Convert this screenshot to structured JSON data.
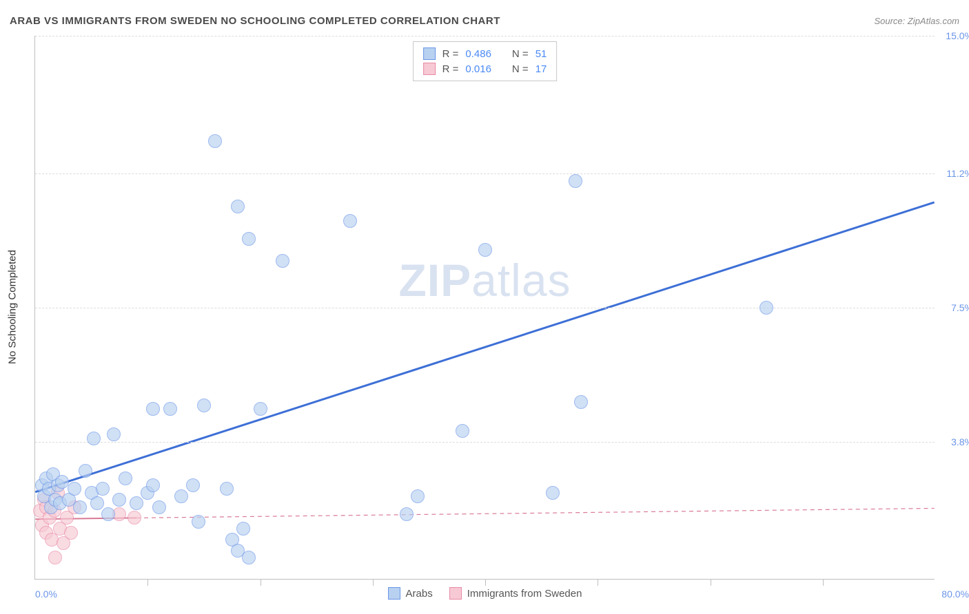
{
  "header": {
    "title": "ARAB VS IMMIGRANTS FROM SWEDEN NO SCHOOLING COMPLETED CORRELATION CHART",
    "source": "Source: ZipAtlas.com"
  },
  "ylabel": "No Schooling Completed",
  "watermark_zip": "ZIP",
  "watermark_atlas": "atlas",
  "chart": {
    "type": "scatter",
    "xlim": [
      0,
      80
    ],
    "ylim": [
      0,
      15
    ],
    "yticks": [
      {
        "value": 3.8,
        "label": "3.8%"
      },
      {
        "value": 7.5,
        "label": "7.5%"
      },
      {
        "value": 11.2,
        "label": "11.2%"
      },
      {
        "value": 15.0,
        "label": "15.0%"
      }
    ],
    "xticks_major": [
      10,
      20,
      30,
      40,
      50,
      60,
      70
    ],
    "x_start_label": "0.0%",
    "x_end_label": "80.0%",
    "background_color": "#ffffff",
    "grid_color": "#dcdcdc",
    "axis_color": "#bfbfbf",
    "point_radius": 10,
    "series": {
      "arabs": {
        "label": "Arabs",
        "fill": "#b8d1f0",
        "stroke": "#6a95e8",
        "fill_opacity": 0.65,
        "trend": {
          "x1": 0,
          "y1": 2.4,
          "x2": 80,
          "y2": 10.4,
          "color": "#3d6fd6",
          "width": 3,
          "dash": "none"
        },
        "R_label": "R =",
        "R": "0.486",
        "N_label": "N =",
        "N": "51",
        "points": [
          [
            0.6,
            2.6
          ],
          [
            0.8,
            2.3
          ],
          [
            1.0,
            2.8
          ],
          [
            1.2,
            2.5
          ],
          [
            1.4,
            2.0
          ],
          [
            1.6,
            2.9
          ],
          [
            1.8,
            2.2
          ],
          [
            2.0,
            2.6
          ],
          [
            2.2,
            2.1
          ],
          [
            2.4,
            2.7
          ],
          [
            3.0,
            2.2
          ],
          [
            3.5,
            2.5
          ],
          [
            4.0,
            2.0
          ],
          [
            4.5,
            3.0
          ],
          [
            5.0,
            2.4
          ],
          [
            5.2,
            3.9
          ],
          [
            5.5,
            2.1
          ],
          [
            6.0,
            2.5
          ],
          [
            6.5,
            1.8
          ],
          [
            7.0,
            4.0
          ],
          [
            7.5,
            2.2
          ],
          [
            8.0,
            2.8
          ],
          [
            9.0,
            2.1
          ],
          [
            10.0,
            2.4
          ],
          [
            10.5,
            4.7
          ],
          [
            10.5,
            2.6
          ],
          [
            11.0,
            2.0
          ],
          [
            12.0,
            4.7
          ],
          [
            13.0,
            2.3
          ],
          [
            14.0,
            2.6
          ],
          [
            14.5,
            1.6
          ],
          [
            15.0,
            4.8
          ],
          [
            16.0,
            12.1
          ],
          [
            17.0,
            2.5
          ],
          [
            17.5,
            1.1
          ],
          [
            18.0,
            10.3
          ],
          [
            18.0,
            0.8
          ],
          [
            18.5,
            1.4
          ],
          [
            19.0,
            9.4
          ],
          [
            19.0,
            0.6
          ],
          [
            20.0,
            4.7
          ],
          [
            22.0,
            8.8
          ],
          [
            28.0,
            9.9
          ],
          [
            33.0,
            1.8
          ],
          [
            38.0,
            4.1
          ],
          [
            34.0,
            2.3
          ],
          [
            40.0,
            9.1
          ],
          [
            46.0,
            2.4
          ],
          [
            48.0,
            11.0
          ],
          [
            48.5,
            4.9
          ],
          [
            65.0,
            7.5
          ]
        ]
      },
      "sweden": {
        "label": "Immigrants from Sweden",
        "fill": "#f7c9d4",
        "stroke": "#e88aa5",
        "fill_opacity": 0.65,
        "trend": {
          "x1": 0,
          "y1": 1.65,
          "x2": 80,
          "y2": 1.95,
          "color": "#d97a95",
          "width": 1.2,
          "dash": "6,5"
        },
        "trend_solid_end_x": 9,
        "R_label": "R =",
        "R": "0.016",
        "N_label": "N =",
        "N": "17",
        "points": [
          [
            0.4,
            1.9
          ],
          [
            0.6,
            1.5
          ],
          [
            0.8,
            2.2
          ],
          [
            1.0,
            1.3
          ],
          [
            1.0,
            2.0
          ],
          [
            1.3,
            1.7
          ],
          [
            1.5,
            1.1
          ],
          [
            1.7,
            1.9
          ],
          [
            1.8,
            0.6
          ],
          [
            2.0,
            2.4
          ],
          [
            2.2,
            1.4
          ],
          [
            2.5,
            1.0
          ],
          [
            2.8,
            1.7
          ],
          [
            3.2,
            1.3
          ],
          [
            3.5,
            2.0
          ],
          [
            7.5,
            1.8
          ],
          [
            8.8,
            1.7
          ]
        ]
      }
    }
  }
}
